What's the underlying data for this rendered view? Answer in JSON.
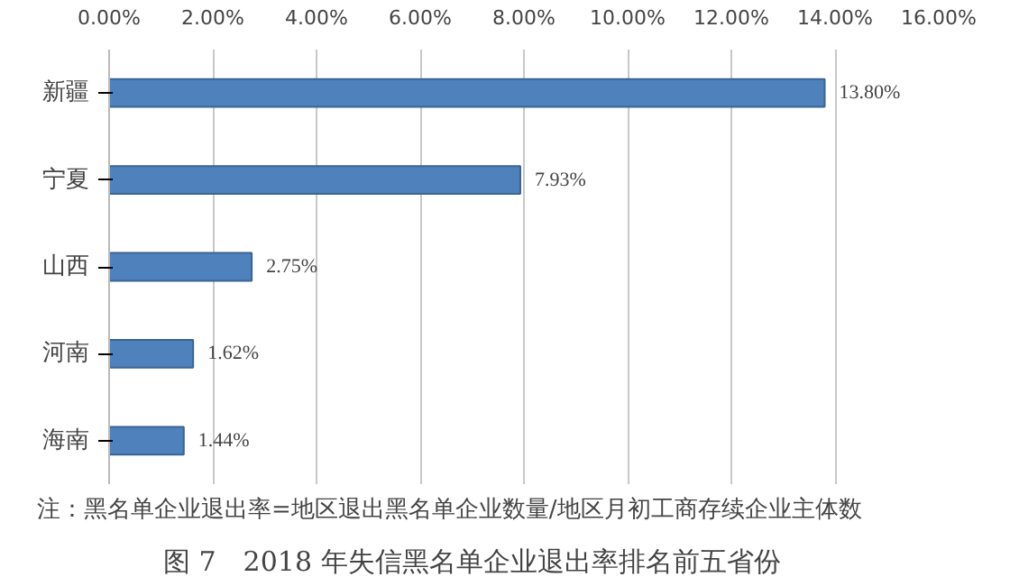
{
  "chart_data": {
    "type": "bar",
    "orientation": "horizontal",
    "title": "图 7　2018 年失信黑名单企业退出率排名前五省份",
    "annotations": [
      "注：黑名单企业退出率=地区退出黑名单企业数量/地区月初工商存续企业主体数"
    ],
    "categories": [
      "新疆",
      "宁夏",
      "山西",
      "河南",
      "海南"
    ],
    "values": [
      13.8,
      7.93,
      2.75,
      1.62,
      1.44
    ],
    "value_labels": [
      "13.80%",
      "7.93%",
      "2.75%",
      "1.62%",
      "1.44%"
    ],
    "color": "#4f81bd",
    "xlim": [
      0,
      16
    ],
    "xticks": [
      {
        "value": 0,
        "label": "0.00%"
      },
      {
        "value": 2,
        "label": "2.00%"
      },
      {
        "value": 4,
        "label": "4.00%"
      },
      {
        "value": 6,
        "label": "6.00%"
      },
      {
        "value": 8,
        "label": "8.00%"
      },
      {
        "value": 10,
        "label": "10.00%"
      },
      {
        "value": 12,
        "label": "12.00%"
      },
      {
        "value": 14,
        "label": "14.00%"
      },
      {
        "value": 16,
        "label": "16.00%"
      }
    ],
    "grid": "x"
  }
}
